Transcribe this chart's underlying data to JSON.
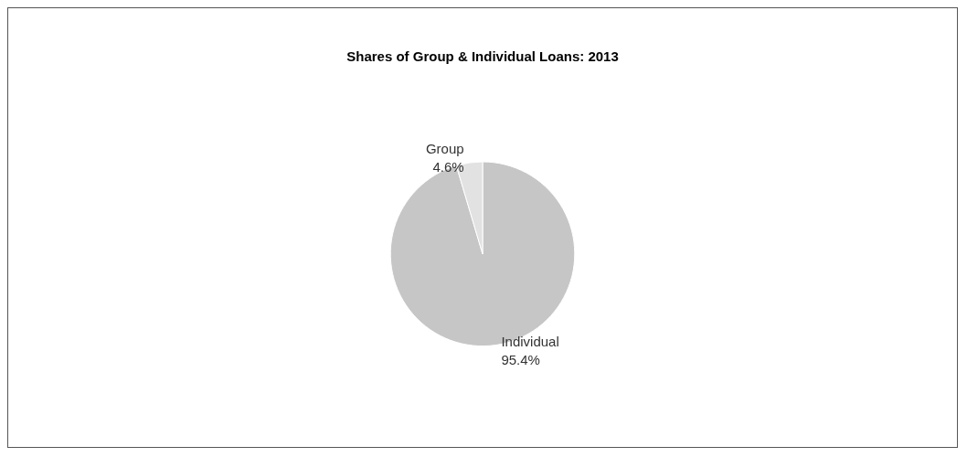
{
  "chart_data": {
    "type": "pie",
    "title": "Shares of Group & Individual Loans: 2013",
    "categories": [
      "Individual",
      "Group"
    ],
    "values": [
      95.4,
      4.6
    ],
    "value_labels": [
      "95.4%",
      "4.6%"
    ],
    "colors": [
      "#c6c6c6",
      "#e2e2e2"
    ],
    "legend": false
  }
}
